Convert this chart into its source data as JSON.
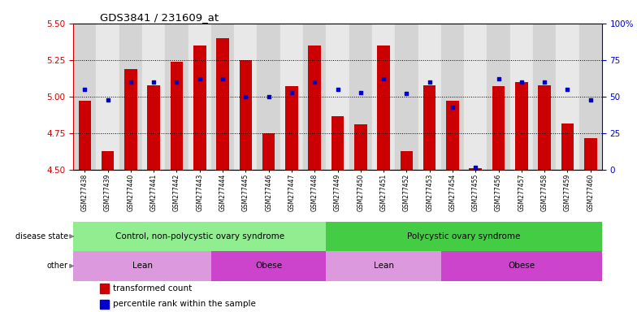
{
  "title": "GDS3841 / 231609_at",
  "samples": [
    "GSM277438",
    "GSM277439",
    "GSM277440",
    "GSM277441",
    "GSM277442",
    "GSM277443",
    "GSM277444",
    "GSM277445",
    "GSM277446",
    "GSM277447",
    "GSM277448",
    "GSM277449",
    "GSM277450",
    "GSM277451",
    "GSM277452",
    "GSM277453",
    "GSM277454",
    "GSM277455",
    "GSM277456",
    "GSM277457",
    "GSM277458",
    "GSM277459",
    "GSM277460"
  ],
  "transformed_count": [
    4.97,
    4.63,
    5.19,
    5.08,
    5.24,
    5.35,
    5.4,
    5.25,
    4.75,
    5.07,
    5.35,
    4.87,
    4.81,
    5.35,
    4.63,
    5.08,
    4.97,
    4.51,
    5.07,
    5.1,
    5.08,
    4.82,
    4.72
  ],
  "percentile_rank": [
    55,
    48,
    60,
    60,
    60,
    62,
    62,
    50,
    50,
    53,
    60,
    55,
    53,
    62,
    52,
    60,
    43,
    2,
    62,
    60,
    60,
    55,
    48
  ],
  "ylim_left": [
    4.5,
    5.5
  ],
  "ylim_right": [
    0,
    100
  ],
  "yticks_left": [
    4.5,
    4.75,
    5.0,
    5.25,
    5.5
  ],
  "yticks_right": [
    0,
    25,
    50,
    75,
    100
  ],
  "ytick_labels_right": [
    "0",
    "25",
    "50",
    "75",
    "100%"
  ],
  "grid_values": [
    4.75,
    5.0,
    5.25
  ],
  "bar_color": "#cc0000",
  "dot_color": "#0000cc",
  "bar_bottom": 4.5,
  "disease_state_groups": [
    {
      "label": "Control, non-polycystic ovary syndrome",
      "start": 0,
      "end": 11,
      "color": "#90ee90"
    },
    {
      "label": "Polycystic ovary syndrome",
      "start": 11,
      "end": 23,
      "color": "#44cc44"
    }
  ],
  "other_groups": [
    {
      "label": "Lean",
      "start": 0,
      "end": 6,
      "color": "#dd99dd"
    },
    {
      "label": "Obese",
      "start": 6,
      "end": 11,
      "color": "#cc44cc"
    },
    {
      "label": "Lean",
      "start": 11,
      "end": 16,
      "color": "#dd99dd"
    },
    {
      "label": "Obese",
      "start": 16,
      "end": 23,
      "color": "#cc44cc"
    }
  ],
  "legend_labels": [
    "transformed count",
    "percentile rank within the sample"
  ],
  "legend_colors": [
    "#cc0000",
    "#0000cc"
  ],
  "left_tick_color": "#cc0000",
  "right_tick_color": "#0000cc",
  "band_color_even": "#d4d4d4",
  "band_color_odd": "#e8e8e8"
}
